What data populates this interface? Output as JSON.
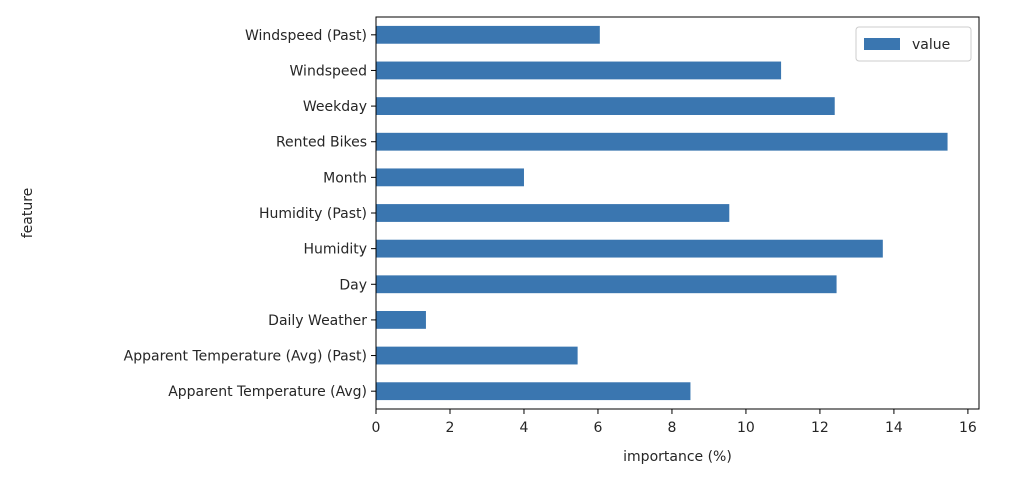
{
  "chart_data": {
    "type": "bar",
    "orientation": "horizontal",
    "categories": [
      "Apparent Temperature (Avg)",
      "Apparent Temperature (Avg) (Past)",
      "Daily Weather",
      "Day",
      "Humidity",
      "Humidity (Past)",
      "Month",
      "Rented Bikes",
      "Weekday",
      "Windspeed",
      "Windspeed (Past)"
    ],
    "series": [
      {
        "name": "value",
        "color": "#3a76b0",
        "values": [
          8.5,
          5.45,
          1.35,
          12.45,
          13.7,
          9.55,
          4.0,
          15.45,
          12.4,
          10.95,
          6.05
        ]
      }
    ],
    "xlabel": "importance (%)",
    "ylabel": "feature",
    "xlim": [
      0,
      16.3
    ],
    "xticks": [
      "0",
      "2",
      "4",
      "6",
      "8",
      "10",
      "12",
      "14",
      "16"
    ],
    "grid": false,
    "legend": "top-right"
  }
}
